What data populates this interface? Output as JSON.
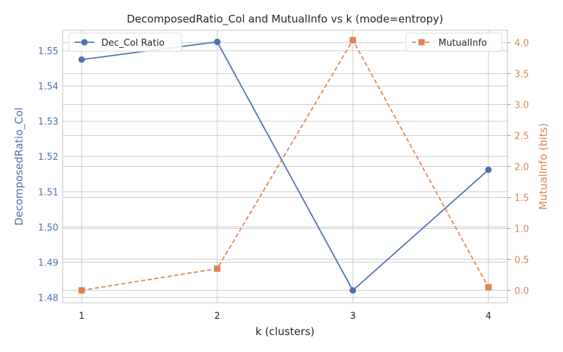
{
  "colors": {
    "left_series": "#4c72b0",
    "right_series": "#dd8452",
    "grid": "#cccccc",
    "text": "#262626"
  },
  "chart_data": {
    "type": "line",
    "title": "DecomposedRatio_Col and MutualInfo vs k (mode=entropy)",
    "xlabel": "k (clusters)",
    "ylabel_left": "DecomposedRatio_Col",
    "ylabel_right": "MutualInfo (bits)",
    "x": [
      1,
      2,
      3,
      4
    ],
    "x_ticks": [
      "1",
      "2",
      "3",
      "4"
    ],
    "xlim": [
      0.86,
      4.14
    ],
    "ylim_left": [
      1.4785,
      1.5558
    ],
    "ylim_right": [
      -0.2,
      4.2
    ],
    "yticks_left": [
      "1.48",
      "1.49",
      "1.50",
      "1.51",
      "1.52",
      "1.53",
      "1.54",
      "1.55"
    ],
    "yticks_right": [
      "0.0",
      "0.5",
      "1.0",
      "1.5",
      "2.0",
      "2.5",
      "3.0",
      "3.5",
      "4.0"
    ],
    "grid": true,
    "series": [
      {
        "name": "Dec_Col Ratio",
        "axis": "left",
        "values": [
          1.5475,
          1.5525,
          1.482,
          1.5162
        ],
        "marker": "circle",
        "linestyle": "solid",
        "legend_position": "top-left"
      },
      {
        "name": "MutualInfo",
        "axis": "right",
        "values": [
          0.0,
          0.35,
          4.04,
          0.05
        ],
        "marker": "square",
        "linestyle": "dashed",
        "legend_position": "top-right"
      }
    ]
  }
}
